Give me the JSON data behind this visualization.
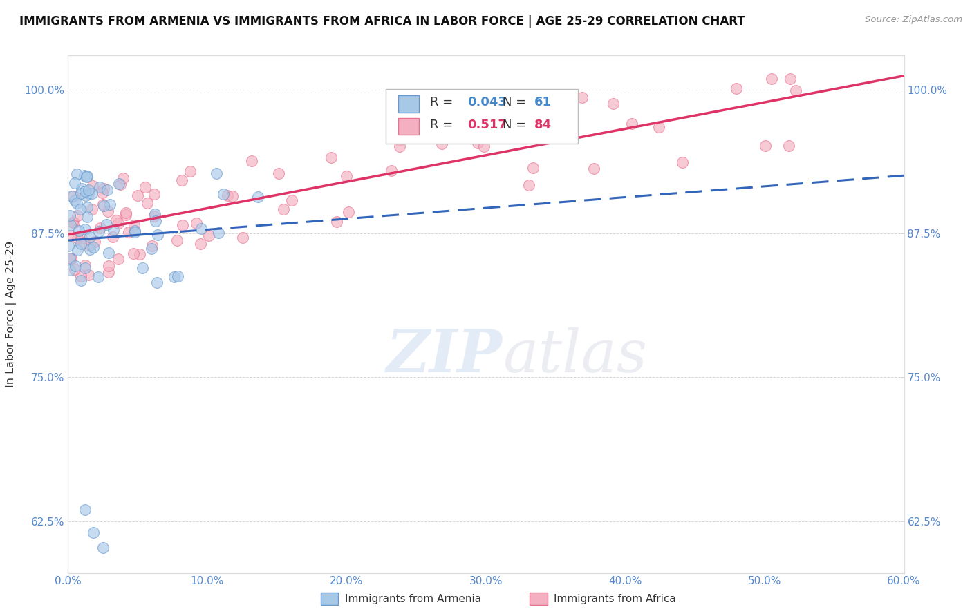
{
  "title": "IMMIGRANTS FROM ARMENIA VS IMMIGRANTS FROM AFRICA IN LABOR FORCE | AGE 25-29 CORRELATION CHART",
  "source": "Source: ZipAtlas.com",
  "xlim": [
    0.0,
    60.0
  ],
  "ylim": [
    58.0,
    103.0
  ],
  "ylabel": "In Labor Force | Age 25-29",
  "armenia_color": "#a8c8e8",
  "africa_color": "#f4b0c0",
  "armenia_edge": "#6699cc",
  "africa_edge": "#e87090",
  "armenia_line_color": "#3366bb",
  "africa_line_color": "#dd3366",
  "armenia_R": 0.043,
  "armenia_N": 61,
  "africa_R": 0.517,
  "africa_N": 84,
  "legend_label_armenia": "Immigrants from Armenia",
  "legend_label_africa": "Immigrants from Africa",
  "watermark_zip": "ZIP",
  "watermark_atlas": "atlas"
}
